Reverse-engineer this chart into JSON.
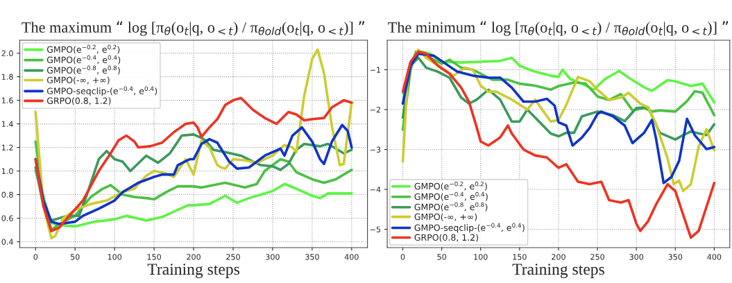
{
  "chart_data": [
    {
      "type": "line",
      "title": "The maximum “ log [π$_{θ}$(o$_{t}$|q, o$_{<t}$) / π$_{θold}$(o$_{t}$|q, o$_{<t}$)] ”",
      "xlabel": "Training steps",
      "xlim": [
        -20,
        420
      ],
      "ylim": [
        0.35,
        2.11
      ],
      "xticks": [
        0,
        50,
        100,
        150,
        200,
        250,
        300,
        350,
        400
      ],
      "yticks": [
        0.4,
        0.6,
        0.8,
        {
          "value": 1.0,
          "label": "1.0"
        },
        1.2,
        1.4,
        1.6,
        1.8,
        {
          "value": 2.0,
          "label": "2.0"
        }
      ],
      "grid": true,
      "legend": "top left",
      "line_style": "solid",
      "marker": "none",
      "series": [
        {
          "name": "GMPO(e$^{−0.2}$, e$^{0.2}$)",
          "color": "#5cf542",
          "x": [
            0,
            20,
            30,
            50,
            75,
            100,
            115,
            140,
            160,
            193,
            200,
            220,
            240,
            255,
            270,
            300,
            315,
            330,
            350,
            360,
            370,
            400
          ],
          "values": [
            1.0,
            0.56,
            0.54,
            0.53,
            0.57,
            0.59,
            0.62,
            0.58,
            0.61,
            0.71,
            0.71,
            0.72,
            0.79,
            0.73,
            0.77,
            0.83,
            0.89,
            0.85,
            0.79,
            0.77,
            0.81,
            0.81
          ]
        },
        {
          "name": "GMPO(e$^{−0.4}$, e$^{0.4}$)",
          "color": "#4cc043",
          "x": [
            0,
            10,
            20,
            30,
            50,
            70,
            85,
            95,
            110,
            125,
            140,
            150,
            165,
            180,
            200,
            210,
            240,
            265,
            280,
            290,
            310,
            320,
            330,
            350,
            365,
            380,
            400
          ],
          "values": [
            1.25,
            0.75,
            0.5,
            0.55,
            0.62,
            0.78,
            0.85,
            0.88,
            0.8,
            0.78,
            0.77,
            0.76,
            0.82,
            0.87,
            0.87,
            0.86,
            0.9,
            0.86,
            0.89,
            1.0,
            1.1,
            1.08,
            0.99,
            0.93,
            0.9,
            0.93,
            1.01
          ]
        },
        {
          "name": "GMPO(e$^{−0.8}$, e$^{0.8}$)",
          "color": "#3a9a5c",
          "x": [
            0,
            10,
            20,
            40,
            55,
            65,
            80,
            90,
            100,
            110,
            120,
            140,
            155,
            170,
            185,
            200,
            210,
            215,
            225,
            240,
            260,
            275,
            285,
            300,
            310,
            320,
            330,
            340,
            360,
            370,
            390,
            400
          ],
          "values": [
            1.03,
            0.7,
            0.58,
            0.62,
            0.62,
            0.8,
            1.1,
            1.17,
            1.1,
            1.08,
            1.0,
            1.13,
            1.07,
            1.15,
            1.3,
            1.31,
            1.28,
            1.26,
            1.18,
            1.16,
            1.13,
            1.08,
            1.05,
            1.04,
            1.01,
            1.06,
            1.18,
            1.23,
            1.21,
            1.23,
            1.15,
            1.18
          ]
        },
        {
          "name": "GMPO(-∞, +∞)",
          "color": "#cccc33",
          "x": [
            0,
            10,
            20,
            25,
            35,
            50,
            70,
            90,
            110,
            125,
            140,
            150,
            165,
            175,
            190,
            200,
            210,
            220,
            230,
            235,
            240,
            250,
            265,
            280,
            300,
            315,
            325,
            330,
            340,
            350,
            357,
            365,
            375,
            385,
            390,
            400
          ],
          "values": [
            1.5,
            0.7,
            0.43,
            0.45,
            0.6,
            0.67,
            0.72,
            0.75,
            0.82,
            0.85,
            0.96,
            1.0,
            0.98,
            0.95,
            1.1,
            0.97,
            1.26,
            1.2,
            1.05,
            1.03,
            1.02,
            1.1,
            1.09,
            1.07,
            1.13,
            1.22,
            1.2,
            1.16,
            1.64,
            1.95,
            2.03,
            1.83,
            1.38,
            1.05,
            1.06,
            1.58
          ]
        },
        {
          "name": "GMPO-seqclip-(e$^{−0.4}$, e$^{0.4}$)",
          "color": "#1034c8",
          "x": [
            0,
            10,
            20,
            30,
            50,
            60,
            80,
            100,
            110,
            130,
            150,
            160,
            175,
            180,
            195,
            200,
            210,
            220,
            230,
            245,
            255,
            270,
            290,
            310,
            315,
            325,
            337,
            350,
            360,
            365,
            375,
            388,
            395,
            400
          ],
          "values": [
            1.1,
            0.75,
            0.57,
            0.55,
            0.57,
            0.62,
            0.68,
            0.75,
            0.82,
            0.9,
            0.95,
            0.97,
            0.97,
            1.05,
            1.1,
            1.1,
            1.23,
            1.27,
            1.24,
            1.08,
            1.02,
            1.03,
            1.13,
            1.19,
            1.13,
            1.3,
            1.37,
            1.25,
            1.1,
            1.06,
            1.25,
            1.39,
            1.34,
            1.2
          ]
        },
        {
          "name": "GRPO(0.8, 1.2)",
          "color": "#ee3322",
          "x": [
            0,
            10,
            20,
            30,
            40,
            60,
            80,
            95,
            105,
            115,
            125,
            130,
            145,
            160,
            175,
            190,
            200,
            205,
            210,
            220,
            230,
            240,
            250,
            260,
            275,
            290,
            305,
            320,
            330,
            340,
            350,
            365,
            375,
            390,
            400
          ],
          "values": [
            1.1,
            0.7,
            0.49,
            0.52,
            0.6,
            0.75,
            1.0,
            1.15,
            1.26,
            1.3,
            1.25,
            1.2,
            1.21,
            1.24,
            1.33,
            1.4,
            1.41,
            1.37,
            1.29,
            1.37,
            1.44,
            1.56,
            1.6,
            1.62,
            1.52,
            1.45,
            1.4,
            1.5,
            1.48,
            1.43,
            1.44,
            1.45,
            1.54,
            1.6,
            1.58
          ]
        }
      ]
    },
    {
      "type": "line",
      "title": "The minimum “ log [π$_{θ}$(o$_{t}$|q, o$_{<t}$) / π$_{θold}$(o$_{t}$|q, o$_{<t}$)] ”",
      "xlabel": "Training steps",
      "xlim": [
        -20,
        420
      ],
      "ylim": [
        -5.46,
        -0.26
      ],
      "xticks": [
        0,
        50,
        100,
        150,
        200,
        250,
        300,
        350,
        400
      ],
      "yticks": [
        {
          "value": -5,
          "label": "−5"
        },
        {
          "value": -4,
          "label": "−4"
        },
        {
          "value": -3,
          "label": "−3"
        },
        {
          "value": -2,
          "label": "−2"
        },
        {
          "value": -1,
          "label": "−1"
        }
      ],
      "grid": true,
      "legend": "bottom left",
      "line_style": "solid",
      "marker": "none",
      "series": [
        {
          "name": "GMPO(e$^{−0.2}$, e$^{0.2}$)",
          "color": "#5cf542",
          "x": [
            0,
            10,
            17,
            25,
            35,
            50,
            75,
            100,
            125,
            140,
            150,
            170,
            190,
            200,
            205,
            215,
            230,
            245,
            260,
            278,
            290,
            310,
            320,
            340,
            350,
            370,
            385,
            400
          ],
          "values": [
            -1.6,
            -0.9,
            -0.55,
            -0.55,
            -0.6,
            -0.8,
            -0.82,
            -0.8,
            -0.78,
            -0.7,
            -0.9,
            -1.05,
            -1.15,
            -1.18,
            -1.0,
            -1.23,
            -1.35,
            -1.5,
            -1.23,
            -1.03,
            -1.2,
            -1.44,
            -1.53,
            -1.26,
            -1.29,
            -1.41,
            -1.35,
            -1.82
          ]
        },
        {
          "name": "GMPO(e$^{−0.4}$, e$^{0.4}$)",
          "color": "#4cc043",
          "x": [
            0,
            10,
            17,
            25,
            35,
            50,
            60,
            75,
            90,
            100,
            115,
            135,
            150,
            170,
            190,
            200,
            220,
            235,
            250,
            265,
            280,
            295,
            310,
            320,
            330,
            350,
            365,
            375,
            385,
            400
          ],
          "values": [
            -2.5,
            -1.0,
            -0.55,
            -0.6,
            -0.7,
            -0.85,
            -0.75,
            -0.95,
            -1.0,
            -1.1,
            -1.25,
            -1.25,
            -1.35,
            -1.4,
            -1.5,
            -1.41,
            -1.32,
            -1.35,
            -1.67,
            -1.76,
            -1.61,
            -2.02,
            -1.96,
            -2.05,
            -2.02,
            -2.05,
            -1.79,
            -1.54,
            -1.58,
            -2.14
          ]
        },
        {
          "name": "GMPO(e$^{−0.8}$, e$^{0.8}$)",
          "color": "#3a9a5c",
          "x": [
            0,
            10,
            20,
            30,
            45,
            60,
            75,
            85,
            95,
            110,
            125,
            140,
            150,
            160,
            175,
            190,
            200,
            210,
            220,
            230,
            250,
            270,
            285,
            300,
            315,
            330,
            350,
            360,
            370,
            390,
            400
          ],
          "values": [
            -2.2,
            -0.9,
            -0.7,
            -0.95,
            -1.05,
            -1.2,
            -1.7,
            -1.85,
            -1.75,
            -1.5,
            -1.75,
            -2.3,
            -2.3,
            -2.0,
            -2.3,
            -2.6,
            -2.67,
            -2.58,
            -2.58,
            -2.17,
            -2.05,
            -2.14,
            -2.29,
            -1.96,
            -1.94,
            -2.58,
            -2.75,
            -2.64,
            -2.55,
            -2.64,
            -2.37
          ]
        },
        {
          "name": "GMPO(-∞, +∞)",
          "color": "#cccc33",
          "x": [
            0,
            7,
            20,
            30,
            50,
            65,
            80,
            90,
            100,
            110,
            120,
            140,
            160,
            170,
            190,
            200,
            210,
            225,
            240,
            250,
            265,
            280,
            290,
            305,
            315,
            325,
            340,
            348,
            355,
            360,
            370,
            380,
            390,
            400
          ],
          "values": [
            -3.3,
            -1.0,
            -0.5,
            -0.7,
            -0.95,
            -1.15,
            -0.95,
            -1.0,
            -1.4,
            -1.55,
            -1.55,
            -1.75,
            -2.0,
            -1.75,
            -2.3,
            -2.26,
            -1.88,
            -1.18,
            -1.29,
            -1.5,
            -1.76,
            -1.7,
            -1.58,
            -1.85,
            -1.94,
            -2.35,
            -3.22,
            -3.87,
            -3.78,
            -4.04,
            -3.87,
            -2.93,
            -2.49,
            -3.02
          ]
        },
        {
          "name": "GMPO-seqclip-(e$^{−0.4}$, e$^{0.4}$)",
          "color": "#1034c8",
          "x": [
            0,
            10,
            20,
            40,
            55,
            70,
            90,
            110,
            125,
            140,
            155,
            170,
            185,
            195,
            200,
            210,
            218,
            230,
            240,
            250,
            255,
            270,
            285,
            295,
            310,
            320,
            325,
            335,
            345,
            355,
            365,
            375,
            390,
            400
          ],
          "values": [
            -1.85,
            -0.9,
            -0.6,
            -0.65,
            -0.85,
            -1.05,
            -1.15,
            -1.2,
            -1.2,
            -1.45,
            -1.8,
            -1.8,
            -1.73,
            -1.9,
            -2.32,
            -2.4,
            -2.9,
            -2.7,
            -2.46,
            -2.11,
            -2.05,
            -2.17,
            -2.4,
            -2.84,
            -2.58,
            -2.26,
            -2.7,
            -3.84,
            -3.69,
            -3.28,
            -2.23,
            -2.64,
            -2.99,
            -2.94
          ]
        },
        {
          "name": "GRPO(0.8, 1.2)",
          "color": "#ee3322",
          "x": [
            0,
            10,
            20,
            30,
            45,
            60,
            75,
            85,
            95,
            100,
            110,
            125,
            135,
            140,
            155,
            170,
            185,
            200,
            210,
            225,
            240,
            255,
            265,
            280,
            290,
            300,
            305,
            315,
            325,
            340,
            350,
            360,
            370,
            380,
            400
          ],
          "values": [
            -1.55,
            -0.8,
            -0.55,
            -0.6,
            -0.9,
            -1.1,
            -1.45,
            -1.8,
            -2.45,
            -2.8,
            -2.9,
            -2.7,
            -2.4,
            -2.6,
            -3.0,
            -3.15,
            -3.2,
            -3.46,
            -3.37,
            -3.81,
            -3.87,
            -3.81,
            -4.27,
            -4.33,
            -4.27,
            -4.86,
            -5.04,
            -4.8,
            -4.39,
            -3.87,
            -4.04,
            -4.63,
            -5.21,
            -5.04,
            -3.84
          ]
        }
      ]
    }
  ]
}
